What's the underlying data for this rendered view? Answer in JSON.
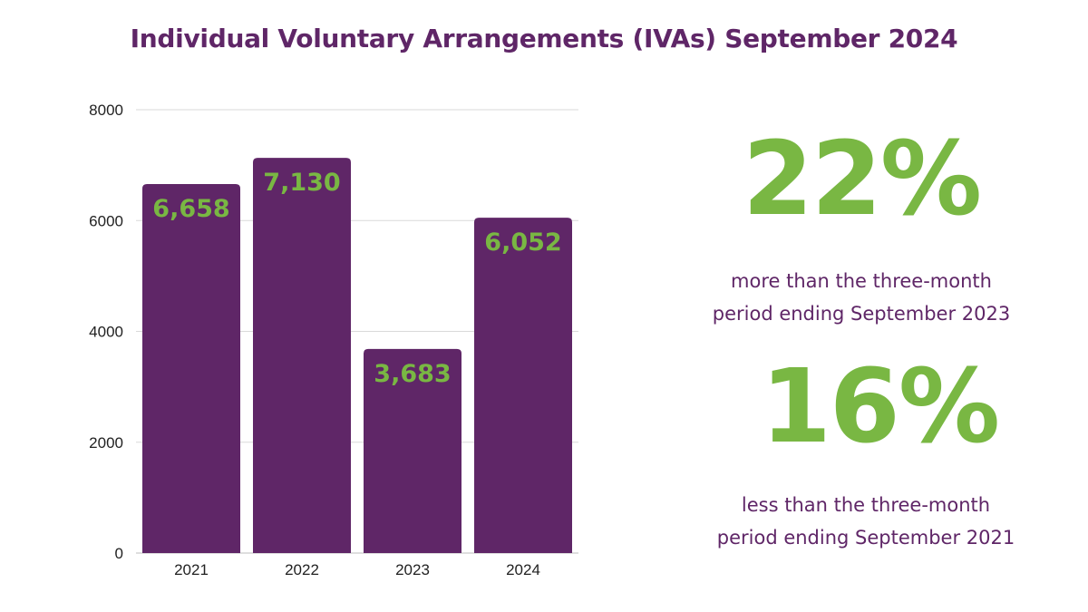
{
  "title": "Individual Voluntary Arrangements (IVAs) September 2024",
  "colors": {
    "primary": "#5f2667",
    "accent": "#79b743",
    "grid": "#d9d9d9",
    "axis_text": "#222222"
  },
  "stats": [
    {
      "value": "22%",
      "line1": "more than the three-month",
      "line2": "period ending September 2023"
    },
    {
      "value": "16%",
      "line1": "less than the three-month",
      "line2": "period ending September 2021"
    }
  ],
  "chart_data": {
    "type": "bar",
    "categories": [
      "2021",
      "2022",
      "2023",
      "2024"
    ],
    "values": [
      6658,
      7130,
      3683,
      6052
    ],
    "value_labels": [
      "6,658",
      "7,130",
      "3,683",
      "6,052"
    ],
    "ylim": [
      0,
      8000
    ],
    "yticks": [
      0,
      2000,
      4000,
      6000,
      8000
    ],
    "grid": true
  }
}
